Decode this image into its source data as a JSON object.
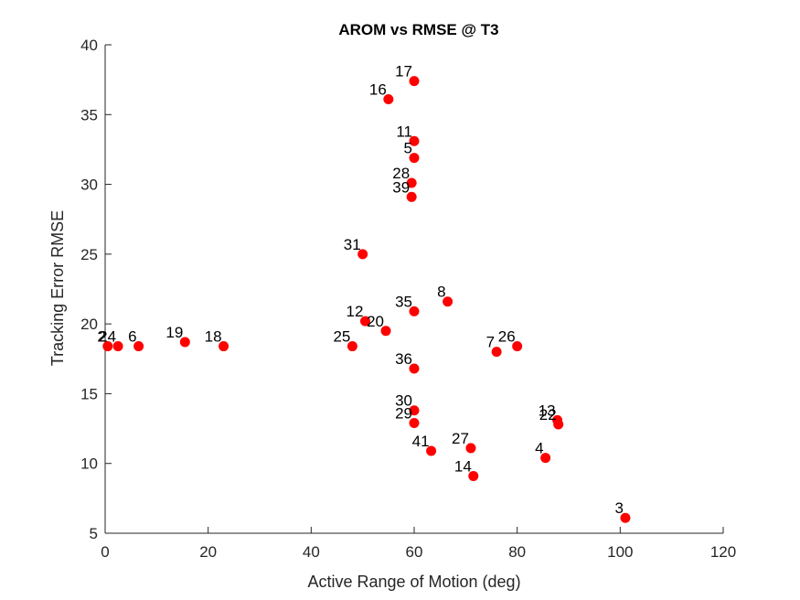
{
  "chart_data": {
    "type": "scatter",
    "title": "AROM vs RMSE @ T3",
    "xlabel": "Active Range of Motion (deg)",
    "ylabel": "Tracking Error RMSE",
    "xlim": [
      0,
      120
    ],
    "ylim": [
      5,
      40
    ],
    "xticks": [
      0,
      20,
      40,
      60,
      80,
      100,
      120
    ],
    "yticks": [
      5,
      10,
      15,
      20,
      25,
      30,
      35,
      40
    ],
    "grid": false,
    "marker_color": "#ff0000",
    "points": [
      {
        "label": "17",
        "x": 60.0,
        "y": 37.4
      },
      {
        "label": "16",
        "x": 55.0,
        "y": 36.1
      },
      {
        "label": "11",
        "x": 60.0,
        "y": 33.1
      },
      {
        "label": "5",
        "x": 60.0,
        "y": 31.9
      },
      {
        "label": "28",
        "x": 59.5,
        "y": 30.1
      },
      {
        "label": "39",
        "x": 59.5,
        "y": 29.1
      },
      {
        "label": "31",
        "x": 50.0,
        "y": 25.0
      },
      {
        "label": "8",
        "x": 66.5,
        "y": 21.6
      },
      {
        "label": "35",
        "x": 60.0,
        "y": 20.9
      },
      {
        "label": "12",
        "x": 50.5,
        "y": 20.2
      },
      {
        "label": "20",
        "x": 54.5,
        "y": 19.5
      },
      {
        "label": "25",
        "x": 48.0,
        "y": 18.4
      },
      {
        "label": "2",
        "x": 0.5,
        "y": 18.4
      },
      {
        "label": "24",
        "x": 2.5,
        "y": 18.4
      },
      {
        "label": "6",
        "x": 6.5,
        "y": 18.4
      },
      {
        "label": "19",
        "x": 15.5,
        "y": 18.7
      },
      {
        "label": "18",
        "x": 23.0,
        "y": 18.4
      },
      {
        "label": "7",
        "x": 76.0,
        "y": 18.0
      },
      {
        "label": "26",
        "x": 80.0,
        "y": 18.4
      },
      {
        "label": "36",
        "x": 60.0,
        "y": 16.8
      },
      {
        "label": "30",
        "x": 60.0,
        "y": 13.8
      },
      {
        "label": "29",
        "x": 60.0,
        "y": 12.9
      },
      {
        "label": "13",
        "x": 87.8,
        "y": 13.1
      },
      {
        "label": "22",
        "x": 88.0,
        "y": 12.8
      },
      {
        "label": "27",
        "x": 71.0,
        "y": 11.1
      },
      {
        "label": "41",
        "x": 63.3,
        "y": 10.9
      },
      {
        "label": "4",
        "x": 85.5,
        "y": 10.4
      },
      {
        "label": "14",
        "x": 71.5,
        "y": 9.1
      },
      {
        "label": "3",
        "x": 101.0,
        "y": 6.1
      }
    ]
  }
}
